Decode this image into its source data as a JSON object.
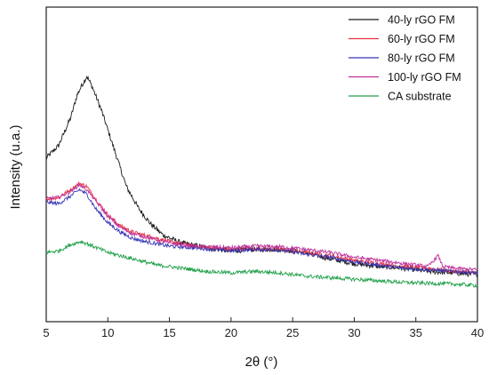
{
  "chart_data": {
    "type": "line",
    "xlabel": "2θ (°)",
    "ylabel": "Intensity (u.a.)",
    "xlim": [
      5,
      40
    ],
    "ylim": [
      0,
      100
    ],
    "x_ticks": [
      5,
      10,
      15,
      20,
      25,
      30,
      35,
      40
    ],
    "y_ticks_shown": false,
    "grid": false,
    "legend_position": "top-right",
    "series": [
      {
        "name": "40-ly rGO FM",
        "color": "#1a1a1a",
        "points": [
          [
            5,
            52
          ],
          [
            6,
            56
          ],
          [
            7,
            65
          ],
          [
            7.5,
            72
          ],
          [
            8,
            76
          ],
          [
            8.3,
            78
          ],
          [
            8.7,
            75
          ],
          [
            9.5,
            67
          ],
          [
            10.5,
            55
          ],
          [
            11.5,
            43
          ],
          [
            12.5,
            36
          ],
          [
            13.5,
            31
          ],
          [
            14.5,
            27.5
          ],
          [
            16,
            25
          ],
          [
            18,
            23.5
          ],
          [
            20,
            22.5
          ],
          [
            22,
            23
          ],
          [
            24,
            23
          ],
          [
            26,
            22
          ],
          [
            28,
            20
          ],
          [
            30,
            18.5
          ],
          [
            32,
            17.5
          ],
          [
            34,
            17
          ],
          [
            36,
            16
          ],
          [
            38,
            15.5
          ],
          [
            40,
            15
          ]
        ]
      },
      {
        "name": "60-ly rGO FM",
        "color": "#e8333f",
        "points": [
          [
            5,
            39
          ],
          [
            6,
            39.5
          ],
          [
            7,
            42
          ],
          [
            7.7,
            44
          ],
          [
            8.3,
            43
          ],
          [
            9,
            39
          ],
          [
            10,
            34
          ],
          [
            11,
            30.5
          ],
          [
            12,
            28.5
          ],
          [
            13,
            27.5
          ],
          [
            15,
            25.5
          ],
          [
            17,
            24
          ],
          [
            20,
            23
          ],
          [
            22,
            23.2
          ],
          [
            24,
            23
          ],
          [
            26,
            22
          ],
          [
            28,
            21
          ],
          [
            30,
            19.5
          ],
          [
            32,
            18.5
          ],
          [
            34,
            17.5
          ],
          [
            36,
            17
          ],
          [
            38,
            16
          ],
          [
            40,
            15.5
          ]
        ]
      },
      {
        "name": "80-ly rGO FM",
        "color": "#3535b5",
        "points": [
          [
            5,
            38
          ],
          [
            6,
            37.5
          ],
          [
            7,
            40
          ],
          [
            7.7,
            42
          ],
          [
            8.3,
            40.5
          ],
          [
            9,
            36
          ],
          [
            10,
            31.5
          ],
          [
            11,
            28.5
          ],
          [
            12,
            26.5
          ],
          [
            13,
            25.5
          ],
          [
            15,
            24
          ],
          [
            17,
            23.5
          ],
          [
            20,
            22.5
          ],
          [
            22,
            23
          ],
          [
            24,
            22.8
          ],
          [
            26,
            21.5
          ],
          [
            28,
            20.5
          ],
          [
            30,
            19
          ],
          [
            32,
            18
          ],
          [
            34,
            17
          ],
          [
            36,
            16.5
          ],
          [
            38,
            16
          ],
          [
            40,
            15.5
          ]
        ]
      },
      {
        "name": "100-ly rGO FM",
        "color": "#c0339b",
        "points": [
          [
            5,
            39
          ],
          [
            6,
            39.5
          ],
          [
            7,
            41.5
          ],
          [
            7.7,
            43.5
          ],
          [
            8.3,
            42
          ],
          [
            9,
            38.5
          ],
          [
            10,
            33.5
          ],
          [
            11,
            30
          ],
          [
            12,
            28
          ],
          [
            13,
            27
          ],
          [
            15,
            25
          ],
          [
            17,
            24
          ],
          [
            20,
            23.5
          ],
          [
            22,
            24
          ],
          [
            24,
            23.8
          ],
          [
            26,
            23
          ],
          [
            28,
            22
          ],
          [
            30,
            20.5
          ],
          [
            32,
            19.5
          ],
          [
            34,
            18.5
          ],
          [
            36,
            17.5
          ],
          [
            36.8,
            21
          ],
          [
            37.2,
            17.5
          ],
          [
            38,
            17
          ],
          [
            40,
            16.5
          ]
        ]
      },
      {
        "name": "CA substrate",
        "color": "#21a04a",
        "points": [
          [
            5,
            22
          ],
          [
            6,
            22.5
          ],
          [
            7,
            24.5
          ],
          [
            7.8,
            25.5
          ],
          [
            8.5,
            24.5
          ],
          [
            10,
            22
          ],
          [
            12,
            20
          ],
          [
            14,
            18
          ],
          [
            16,
            17
          ],
          [
            18,
            16
          ],
          [
            20,
            15.5
          ],
          [
            22,
            16
          ],
          [
            24,
            15.5
          ],
          [
            26,
            14.5
          ],
          [
            28,
            14
          ],
          [
            30,
            13.5
          ],
          [
            32,
            13
          ],
          [
            34,
            12.5
          ],
          [
            36,
            12.2
          ],
          [
            38,
            12
          ],
          [
            40,
            11.5
          ]
        ]
      }
    ]
  }
}
